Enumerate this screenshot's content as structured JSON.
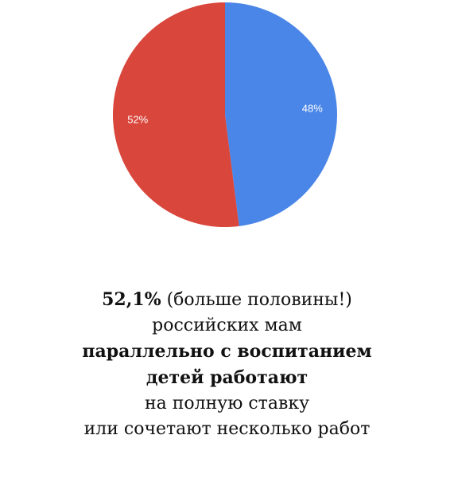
{
  "chart_data": {
    "type": "pie",
    "values": [
      48,
      52
    ],
    "value_labels": [
      "48%",
      "52%"
    ],
    "colors": [
      "#4a86e8",
      "#d9463b"
    ],
    "start_angle": -90,
    "direction": "clockwise"
  },
  "caption": {
    "lines": [
      [
        {
          "text": "52,1%",
          "bold": true
        },
        {
          "text": " (больше половины!)",
          "bold": false
        }
      ],
      [
        {
          "text": "российских мам",
          "bold": false
        }
      ],
      [
        {
          "text": "параллельно с воспитанием",
          "bold": true
        }
      ],
      [
        {
          "text": "детей работают",
          "bold": true
        }
      ],
      [
        {
          "text": "на полную ставку",
          "bold": false
        }
      ],
      [
        {
          "text": "или сочетают несколько работ",
          "bold": false
        }
      ]
    ]
  }
}
